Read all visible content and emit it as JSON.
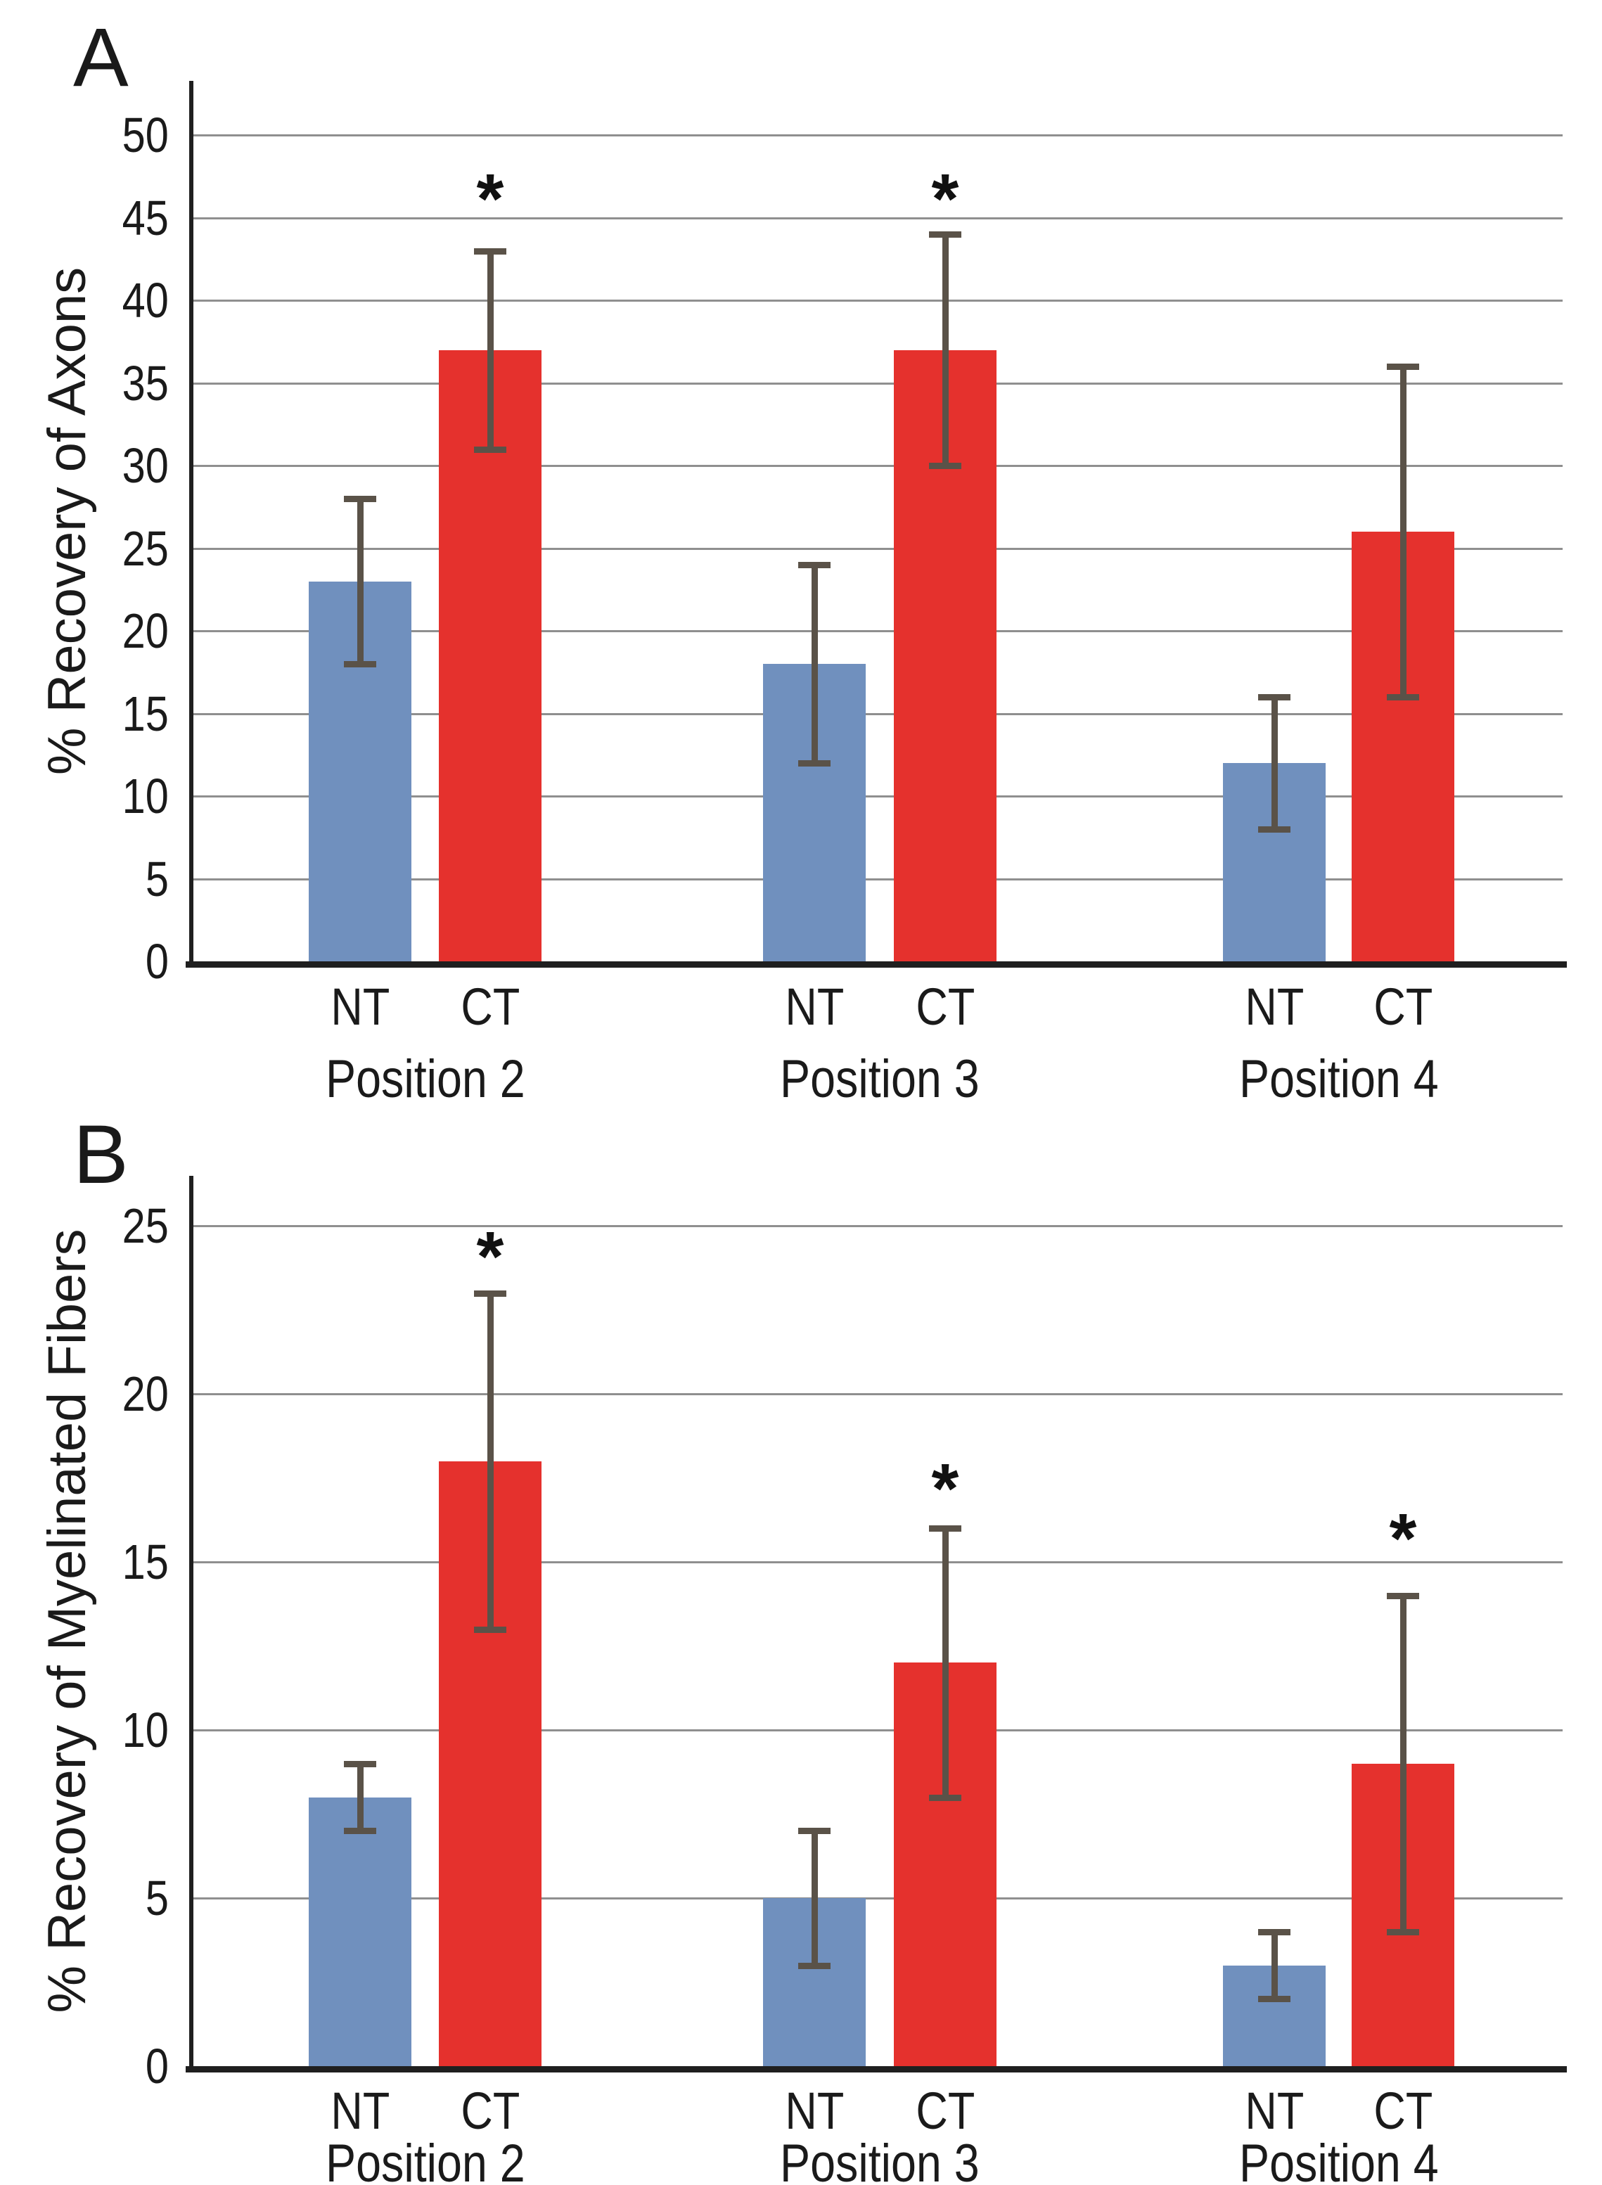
{
  "marker": {
    "significance": "*"
  },
  "colors": {
    "nt_bar": "#7090BE",
    "ct_bar": "#E5312D",
    "error_bar": "#5A5248",
    "gridline": "#8F8F8F",
    "axis": "#1F1F1F",
    "text": "#1A1A1A",
    "background": "#FFFFFF"
  },
  "chart_data": [
    {
      "type": "bar",
      "panel_letter": "A",
      "ylabel": "% Recovery of Axons",
      "xlabel": "",
      "ylim": [
        0,
        50
      ],
      "ytick_step": 5,
      "yticks": [
        0,
        5,
        10,
        15,
        20,
        25,
        30,
        35,
        40,
        45,
        50
      ],
      "grid": true,
      "legend": "none",
      "series_names": [
        "NT",
        "CT"
      ],
      "categories": [
        "Position 2",
        "Position 3",
        "Position 4"
      ],
      "groups": [
        {
          "label": "Position 2",
          "bars": [
            {
              "label": "NT",
              "value": 23,
              "err_low": 18,
              "err_high": 28,
              "significant": false
            },
            {
              "label": "CT",
              "value": 37,
              "err_low": 31,
              "err_high": 43,
              "significant": true,
              "asterisk_y": 47.0
            }
          ]
        },
        {
          "label": "Position 3",
          "bars": [
            {
              "label": "NT",
              "value": 18,
              "err_low": 12,
              "err_high": 24,
              "significant": false
            },
            {
              "label": "CT",
              "value": 37,
              "err_low": 30,
              "err_high": 44,
              "significant": true,
              "asterisk_y": 47.0
            }
          ]
        },
        {
          "label": "Position 4",
          "bars": [
            {
              "label": "NT",
              "value": 12,
              "err_low": 8,
              "err_high": 16,
              "significant": false
            },
            {
              "label": "CT",
              "value": 26,
              "err_low": 16,
              "err_high": 36,
              "significant": false
            }
          ]
        }
      ]
    },
    {
      "type": "bar",
      "panel_letter": "B",
      "ylabel": "% Recovery of Myelinated Fibers",
      "xlabel": "",
      "ylim": [
        0,
        25
      ],
      "ytick_step": 5,
      "yticks": [
        0,
        5,
        10,
        15,
        20,
        25
      ],
      "grid": true,
      "legend": "none",
      "series_names": [
        "NT",
        "CT"
      ],
      "categories": [
        "Position 2",
        "Position 3",
        "Position 4"
      ],
      "groups": [
        {
          "label": "Position 2",
          "bars": [
            {
              "label": "NT",
              "value": 8,
              "err_low": 7,
              "err_high": 9,
              "significant": false
            },
            {
              "label": "CT",
              "value": 18,
              "err_low": 13,
              "err_high": 23,
              "significant": true,
              "asterisk_y": 24.5
            }
          ]
        },
        {
          "label": "Position 3",
          "bars": [
            {
              "label": "NT",
              "value": 5,
              "err_low": 3,
              "err_high": 7,
              "significant": false
            },
            {
              "label": "CT",
              "value": 12,
              "err_low": 8,
              "err_high": 16,
              "significant": true,
              "asterisk_y": 17.6
            }
          ]
        },
        {
          "label": "Position 4",
          "bars": [
            {
              "label": "NT",
              "value": 3,
              "err_low": 2,
              "err_high": 4,
              "significant": false
            },
            {
              "label": "CT",
              "value": 9,
              "err_low": 4,
              "err_high": 14,
              "significant": true,
              "asterisk_y": 16.1
            }
          ]
        }
      ]
    }
  ]
}
